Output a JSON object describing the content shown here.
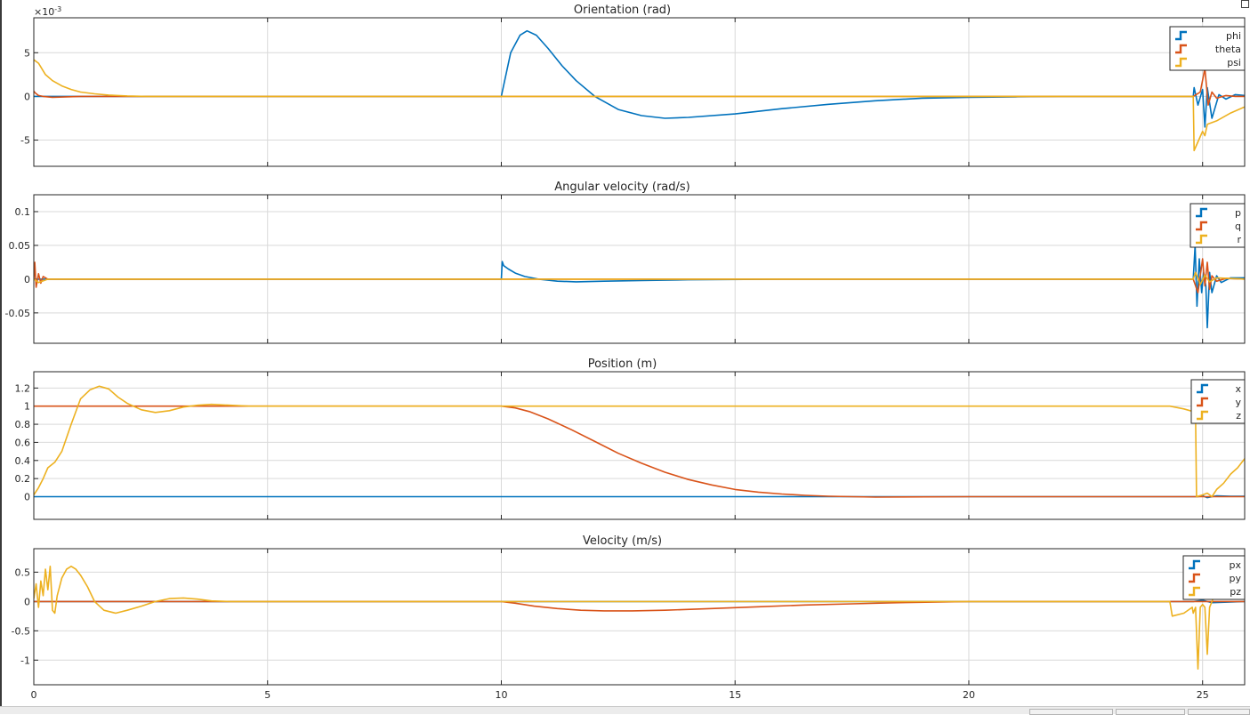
{
  "window": {
    "undock_icon": "undock-icon"
  },
  "colors": {
    "series1": "#0072BD",
    "series2": "#D95319",
    "series3": "#EDB120",
    "grid": "#d9d9d9",
    "axes": "#262626"
  },
  "chart_data": [
    {
      "id": "orientation",
      "type": "line",
      "title": "Orientation (rad)",
      "exponent_label": "×10",
      "exponent_power": "-3",
      "xlim": [
        0,
        25.9
      ],
      "ylim": [
        -8,
        9
      ],
      "yticks": [
        5,
        0,
        -5
      ],
      "ytick_labels": [
        "5",
        "0",
        "-5"
      ],
      "xticks": [
        0,
        5,
        10,
        15,
        20,
        25
      ],
      "xtick_labels": [],
      "grid": true,
      "legend_position": "top-right",
      "series": [
        {
          "name": "phi",
          "color": "#0072BD",
          "x": [
            0,
            10,
            10.02,
            10.2,
            10.4,
            10.55,
            10.75,
            11.0,
            11.3,
            11.6,
            12.0,
            12.5,
            13.0,
            13.5,
            14.0,
            15.0,
            16.0,
            17.0,
            18.0,
            19.0,
            20.0,
            21.0,
            22.0,
            23.0,
            24.0,
            24.8,
            24.82,
            24.9,
            25.0,
            25.05,
            25.1,
            25.2,
            25.35,
            25.5,
            25.7,
            25.9
          ],
          "y": [
            0,
            0,
            0.5,
            5.0,
            7.0,
            7.5,
            7.0,
            5.5,
            3.5,
            1.8,
            0.0,
            -1.5,
            -2.2,
            -2.5,
            -2.4,
            -2.0,
            -1.4,
            -0.9,
            -0.5,
            -0.2,
            -0.1,
            -0.05,
            0,
            0,
            0,
            0,
            1.0,
            -1.0,
            0.8,
            -3.5,
            1.0,
            -2.5,
            0.2,
            -0.3,
            0.2,
            0.1
          ]
        },
        {
          "name": "theta",
          "color": "#D95319",
          "x": [
            0,
            0.03,
            0.1,
            0.2,
            0.4,
            1.0,
            2.5,
            10,
            20,
            24.8,
            24.95,
            25.05,
            25.12,
            25.2,
            25.3,
            25.5,
            25.7,
            25.9
          ],
          "y": [
            0.6,
            0.4,
            0.1,
            0,
            -0.1,
            0,
            0,
            0,
            0,
            0,
            0.5,
            3.2,
            -1.0,
            0.5,
            -0.2,
            0.1,
            0,
            0
          ]
        },
        {
          "name": "psi",
          "color": "#EDB120",
          "x": [
            0,
            0.1,
            0.25,
            0.4,
            0.6,
            0.8,
            1.0,
            1.3,
            1.6,
            2.0,
            2.4,
            3.0,
            10,
            20,
            24.8,
            24.82,
            24.9,
            25.0,
            25.05,
            25.1,
            25.3,
            25.6,
            25.9
          ],
          "y": [
            4.2,
            3.8,
            2.5,
            1.8,
            1.2,
            0.8,
            0.5,
            0.3,
            0.15,
            0.05,
            0,
            0,
            0,
            0,
            0,
            -6.2,
            -5.2,
            -4.0,
            -4.5,
            -3.2,
            -2.8,
            -1.9,
            -1.2
          ]
        }
      ]
    },
    {
      "id": "angular-velocity",
      "type": "line",
      "title": "Angular velocity (rad/s)",
      "xlim": [
        0,
        25.9
      ],
      "ylim": [
        -0.095,
        0.125
      ],
      "yticks": [
        0.1,
        0.05,
        0,
        -0.05
      ],
      "ytick_labels": [
        "0.1",
        "0.05",
        "0",
        "-0.05"
      ],
      "xticks": [
        0,
        5,
        10,
        15,
        20,
        25
      ],
      "xtick_labels": [],
      "grid": true,
      "legend_position": "top-right",
      "series": [
        {
          "name": "p",
          "color": "#0072BD",
          "x": [
            0,
            10,
            10.02,
            10.05,
            10.15,
            10.3,
            10.5,
            10.8,
            11.2,
            11.6,
            12.2,
            13.0,
            14.0,
            16.0,
            18.0,
            20.0,
            22.0,
            24.8,
            24.84,
            24.88,
            24.93,
            24.98,
            25.02,
            25.07,
            25.1,
            25.15,
            25.2,
            25.3,
            25.4,
            25.6,
            25.9
          ],
          "y": [
            0,
            0,
            0.026,
            0.02,
            0.015,
            0.009,
            0.004,
            0.0,
            -0.003,
            -0.004,
            -0.003,
            -0.002,
            -0.001,
            0,
            0,
            0,
            0,
            0,
            0.05,
            -0.04,
            0.03,
            -0.02,
            0.01,
            -0.01,
            -0.072,
            0.01,
            -0.02,
            0.005,
            -0.005,
            0.002,
            0.002
          ]
        },
        {
          "name": "q",
          "color": "#D95319",
          "x": [
            0,
            0.02,
            0.05,
            0.1,
            0.15,
            0.2,
            0.3,
            0.5,
            10,
            20,
            24.8,
            24.9,
            25.0,
            25.05,
            25.1,
            25.15,
            25.2,
            25.3,
            25.5,
            25.9
          ],
          "y": [
            0,
            0.025,
            -0.012,
            0.008,
            -0.006,
            0.004,
            0,
            0,
            0,
            0,
            0,
            -0.02,
            0.03,
            -0.01,
            0.025,
            -0.015,
            0.005,
            -0.003,
            0.001,
            0
          ]
        },
        {
          "name": "r",
          "color": "#EDB120",
          "x": [
            0,
            0.1,
            0.3,
            10,
            20,
            24.8,
            24.85,
            24.95,
            25.05,
            25.15,
            25.3,
            25.9
          ],
          "y": [
            0,
            -0.005,
            0,
            0,
            0,
            0,
            0.01,
            -0.008,
            0.006,
            -0.004,
            0.002,
            0
          ]
        }
      ]
    },
    {
      "id": "position",
      "type": "line",
      "title": "Position (m)",
      "xlim": [
        0,
        25.9
      ],
      "ylim": [
        -0.25,
        1.38
      ],
      "yticks": [
        1.2,
        1,
        0.8,
        0.6,
        0.4,
        0.2,
        0
      ],
      "ytick_labels": [
        "1.2",
        "1",
        "0.8",
        "0.6",
        "0.4",
        "0.2",
        "0"
      ],
      "xticks": [
        0,
        5,
        10,
        15,
        20,
        25
      ],
      "xtick_labels": [],
      "grid": true,
      "legend_position": "top-right",
      "series": [
        {
          "name": "x",
          "color": "#0072BD",
          "x": [
            0,
            10,
            20,
            24.9,
            25.0,
            25.1,
            25.3,
            25.6,
            25.9
          ],
          "y": [
            0,
            0,
            0,
            0,
            0.01,
            -0.01,
            0.01,
            0.005,
            0.005
          ]
        },
        {
          "name": "y",
          "color": "#D95319",
          "x": [
            0,
            10,
            10.3,
            10.6,
            11.0,
            11.5,
            12.0,
            12.5,
            13.0,
            13.5,
            14.0,
            14.5,
            15.0,
            15.5,
            16.0,
            16.5,
            17.0,
            17.5,
            18.0,
            20.0,
            25.9
          ],
          "y": [
            1,
            1,
            0.98,
            0.94,
            0.86,
            0.74,
            0.61,
            0.48,
            0.37,
            0.27,
            0.19,
            0.13,
            0.08,
            0.05,
            0.03,
            0.015,
            0.005,
            0,
            -0.005,
            0,
            0
          ]
        },
        {
          "name": "z",
          "color": "#EDB120",
          "x": [
            0,
            0.1,
            0.2,
            0.3,
            0.45,
            0.6,
            0.8,
            1.0,
            1.2,
            1.4,
            1.6,
            1.8,
            2.0,
            2.3,
            2.6,
            2.9,
            3.2,
            3.5,
            3.8,
            4.2,
            4.6,
            5.0,
            10,
            20,
            24.3,
            24.6,
            24.8,
            24.85,
            24.87,
            25.0,
            25.1,
            25.2,
            25.3,
            25.45,
            25.6,
            25.75,
            25.9
          ],
          "y": [
            0.02,
            0.1,
            0.2,
            0.32,
            0.38,
            0.5,
            0.8,
            1.08,
            1.18,
            1.22,
            1.19,
            1.1,
            1.03,
            0.96,
            0.93,
            0.95,
            0.99,
            1.01,
            1.02,
            1.01,
            1.0,
            1.0,
            1.0,
            1.0,
            1.0,
            0.97,
            0.94,
            0.9,
            0.0,
            0.02,
            0.04,
            0.0,
            0.08,
            0.15,
            0.25,
            0.32,
            0.42
          ]
        }
      ]
    },
    {
      "id": "velocity",
      "type": "line",
      "title": "Velocity (m/s)",
      "xlim": [
        0,
        25.9
      ],
      "ylim": [
        -1.42,
        0.9
      ],
      "yticks": [
        0.5,
        0,
        -0.5,
        -1
      ],
      "ytick_labels": [
        "0.5",
        "0",
        "-0.5",
        "-1"
      ],
      "xticks": [
        0,
        5,
        10,
        15,
        20,
        25
      ],
      "xtick_labels": [
        "0",
        "5",
        "10",
        "15",
        "20",
        "25"
      ],
      "grid": true,
      "legend_position": "top-right",
      "series": [
        {
          "name": "px",
          "color": "#0072BD",
          "x": [
            0,
            10,
            20,
            24.8,
            25.0,
            25.2,
            25.9
          ],
          "y": [
            0,
            0,
            0,
            0,
            0.02,
            -0.02,
            0
          ]
        },
        {
          "name": "py",
          "color": "#D95319",
          "x": [
            0,
            10,
            10.3,
            10.7,
            11.2,
            11.7,
            12.2,
            12.8,
            13.5,
            14.5,
            15.5,
            16.5,
            17.5,
            18.5,
            20,
            25.9
          ],
          "y": [
            0,
            0,
            -0.03,
            -0.08,
            -0.12,
            -0.15,
            -0.16,
            -0.16,
            -0.15,
            -0.12,
            -0.09,
            -0.06,
            -0.04,
            -0.02,
            0,
            0
          ]
        },
        {
          "name": "pz",
          "color": "#EDB120",
          "x": [
            0,
            0.05,
            0.1,
            0.15,
            0.2,
            0.25,
            0.3,
            0.35,
            0.4,
            0.45,
            0.5,
            0.55,
            0.6,
            0.7,
            0.8,
            0.9,
            1.0,
            1.15,
            1.3,
            1.5,
            1.75,
            2.0,
            2.3,
            2.6,
            2.9,
            3.2,
            3.5,
            3.8,
            4.2,
            4.6,
            5.0,
            10,
            20,
            24.3,
            24.35,
            24.6,
            24.78,
            24.8,
            24.85,
            24.9,
            24.95,
            25.0,
            25.05,
            25.1,
            25.15,
            25.2,
            25.3,
            25.5,
            25.7,
            25.9
          ],
          "y": [
            0.05,
            0.3,
            -0.1,
            0.35,
            0.1,
            0.55,
            0.2,
            0.6,
            -0.15,
            -0.2,
            0.1,
            0.25,
            0.4,
            0.55,
            0.6,
            0.55,
            0.45,
            0.25,
            0.0,
            -0.15,
            -0.2,
            -0.15,
            -0.08,
            0.0,
            0.05,
            0.06,
            0.04,
            0.01,
            0.0,
            0.0,
            0.0,
            0.0,
            0.0,
            0.0,
            -0.25,
            -0.2,
            -0.1,
            -0.2,
            -0.1,
            -1.15,
            -0.1,
            -0.05,
            -0.1,
            -0.9,
            -0.1,
            0.0,
            0.2,
            0.4,
            0.55,
            0.65
          ]
        }
      ]
    }
  ]
}
